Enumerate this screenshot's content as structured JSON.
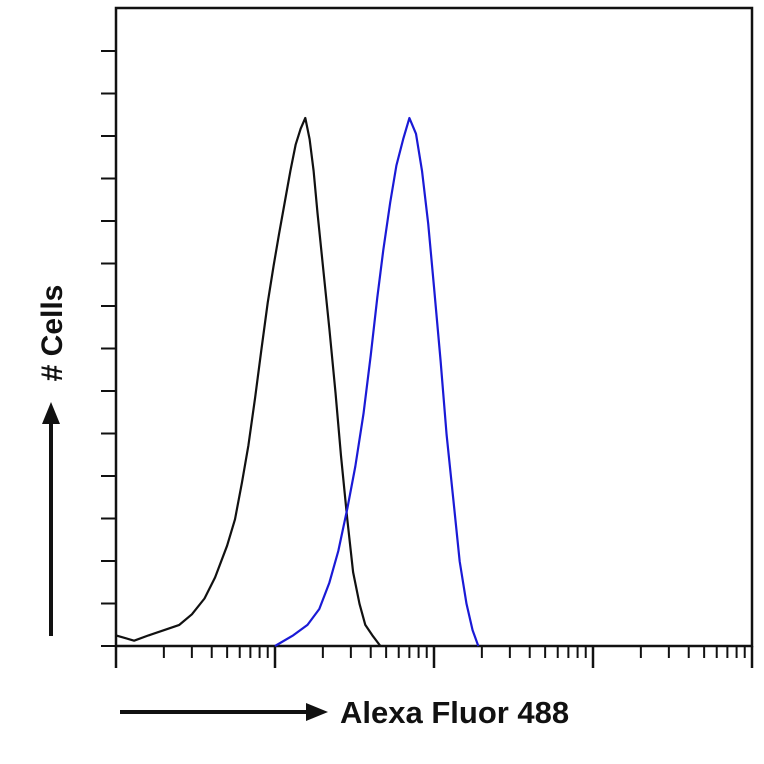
{
  "chart_data": {
    "type": "histogram-overlay",
    "xlabel": "Alexa Fluor 488",
    "ylabel": "# Cells",
    "xscale": "log",
    "xlim": [
      1,
      10000
    ],
    "ylim": [
      0,
      100
    ],
    "grid": false,
    "series": [
      {
        "color": "#111111",
        "points": [
          [
            1.0,
            2
          ],
          [
            1.3,
            1
          ],
          [
            1.6,
            2
          ],
          [
            2.0,
            3
          ],
          [
            2.5,
            4
          ],
          [
            3.0,
            6
          ],
          [
            3.6,
            9
          ],
          [
            4.2,
            13
          ],
          [
            5.0,
            19
          ],
          [
            5.6,
            24
          ],
          [
            6.2,
            31
          ],
          [
            6.8,
            38
          ],
          [
            7.5,
            47
          ],
          [
            8.2,
            56
          ],
          [
            9.0,
            65
          ],
          [
            9.8,
            72
          ],
          [
            10.6,
            78
          ],
          [
            11.5,
            84
          ],
          [
            12.5,
            90
          ],
          [
            13.5,
            95
          ],
          [
            14.5,
            98
          ],
          [
            15.5,
            100
          ],
          [
            16.5,
            96
          ],
          [
            17.5,
            90
          ],
          [
            18.5,
            82
          ],
          [
            20.0,
            72
          ],
          [
            22.0,
            60
          ],
          [
            24.0,
            48
          ],
          [
            26.0,
            36
          ],
          [
            28.5,
            24
          ],
          [
            31.0,
            14
          ],
          [
            34.0,
            8
          ],
          [
            37.0,
            4
          ],
          [
            41.0,
            2
          ],
          [
            46.0,
            0
          ]
        ]
      },
      {
        "color": "#1a1ad6",
        "points": [
          [
            10.0,
            0
          ],
          [
            13.0,
            2
          ],
          [
            16.0,
            4
          ],
          [
            19.0,
            7
          ],
          [
            22.0,
            12
          ],
          [
            25.0,
            18
          ],
          [
            28.5,
            26
          ],
          [
            32.0,
            34
          ],
          [
            36.0,
            44
          ],
          [
            40.0,
            55
          ],
          [
            44.0,
            66
          ],
          [
            48.0,
            75
          ],
          [
            53.0,
            84
          ],
          [
            58.0,
            91
          ],
          [
            64.0,
            96
          ],
          [
            70.0,
            100
          ],
          [
            77.0,
            97
          ],
          [
            84.0,
            90
          ],
          [
            92.0,
            80
          ],
          [
            100.0,
            68
          ],
          [
            110.0,
            54
          ],
          [
            120.0,
            40
          ],
          [
            132.0,
            28
          ],
          [
            145.0,
            16
          ],
          [
            160.0,
            8
          ],
          [
            175.0,
            3
          ],
          [
            190.0,
            0
          ]
        ]
      }
    ]
  }
}
